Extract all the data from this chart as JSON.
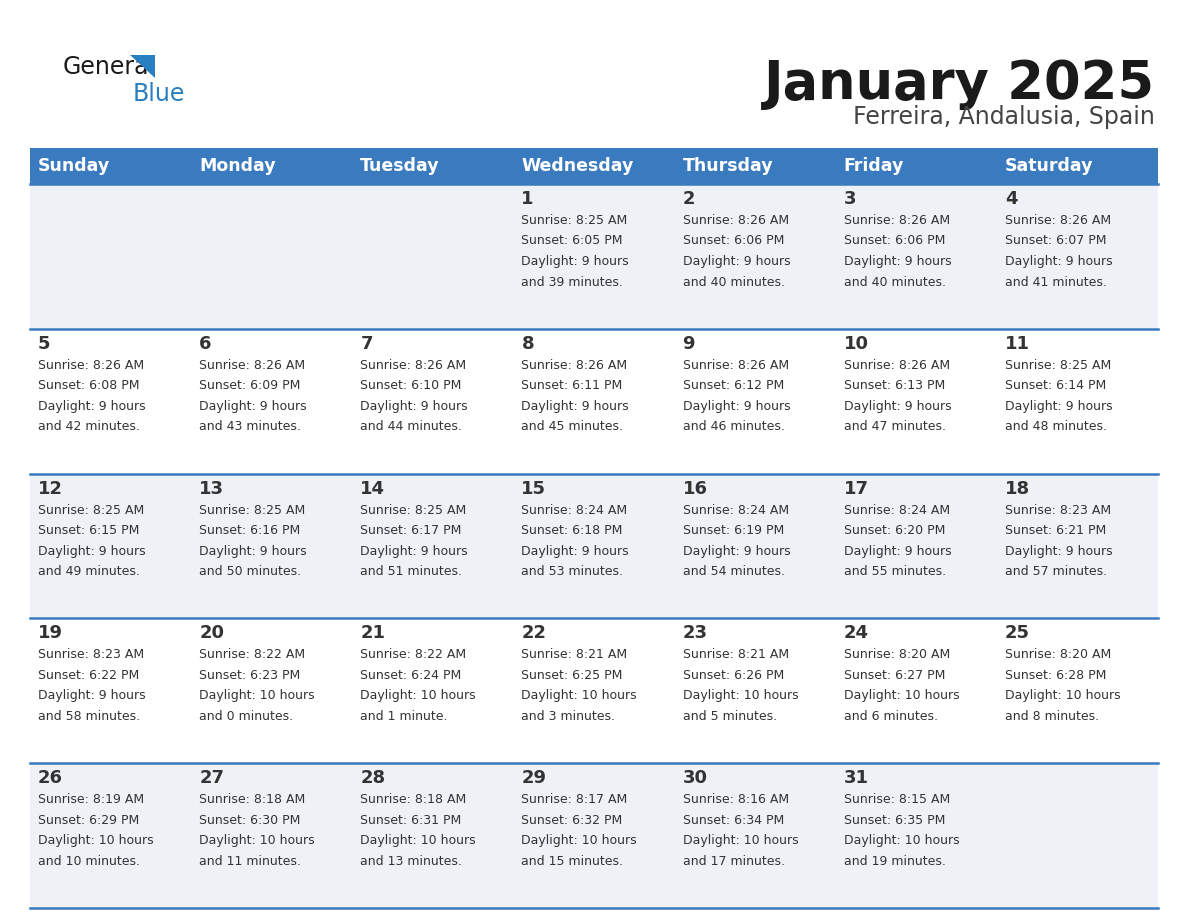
{
  "title": "January 2025",
  "subtitle": "Ferreira, Andalusia, Spain",
  "days_of_week": [
    "Sunday",
    "Monday",
    "Tuesday",
    "Wednesday",
    "Thursday",
    "Friday",
    "Saturday"
  ],
  "header_bg": "#3a7abf",
  "header_text": "#ffffff",
  "cell_bg_odd": "#eef2f7",
  "cell_bg_even": "#ffffff",
  "separator_color": "#3a7abf",
  "text_color": "#333333",
  "calendar": [
    [
      {
        "day": null,
        "sunrise": null,
        "sunset": null,
        "daylight": null
      },
      {
        "day": null,
        "sunrise": null,
        "sunset": null,
        "daylight": null
      },
      {
        "day": null,
        "sunrise": null,
        "sunset": null,
        "daylight": null
      },
      {
        "day": 1,
        "sunrise": "8:25 AM",
        "sunset": "6:05 PM",
        "daylight": "9 hours\nand 39 minutes."
      },
      {
        "day": 2,
        "sunrise": "8:26 AM",
        "sunset": "6:06 PM",
        "daylight": "9 hours\nand 40 minutes."
      },
      {
        "day": 3,
        "sunrise": "8:26 AM",
        "sunset": "6:06 PM",
        "daylight": "9 hours\nand 40 minutes."
      },
      {
        "day": 4,
        "sunrise": "8:26 AM",
        "sunset": "6:07 PM",
        "daylight": "9 hours\nand 41 minutes."
      }
    ],
    [
      {
        "day": 5,
        "sunrise": "8:26 AM",
        "sunset": "6:08 PM",
        "daylight": "9 hours\nand 42 minutes."
      },
      {
        "day": 6,
        "sunrise": "8:26 AM",
        "sunset": "6:09 PM",
        "daylight": "9 hours\nand 43 minutes."
      },
      {
        "day": 7,
        "sunrise": "8:26 AM",
        "sunset": "6:10 PM",
        "daylight": "9 hours\nand 44 minutes."
      },
      {
        "day": 8,
        "sunrise": "8:26 AM",
        "sunset": "6:11 PM",
        "daylight": "9 hours\nand 45 minutes."
      },
      {
        "day": 9,
        "sunrise": "8:26 AM",
        "sunset": "6:12 PM",
        "daylight": "9 hours\nand 46 minutes."
      },
      {
        "day": 10,
        "sunrise": "8:26 AM",
        "sunset": "6:13 PM",
        "daylight": "9 hours\nand 47 minutes."
      },
      {
        "day": 11,
        "sunrise": "8:25 AM",
        "sunset": "6:14 PM",
        "daylight": "9 hours\nand 48 minutes."
      }
    ],
    [
      {
        "day": 12,
        "sunrise": "8:25 AM",
        "sunset": "6:15 PM",
        "daylight": "9 hours\nand 49 minutes."
      },
      {
        "day": 13,
        "sunrise": "8:25 AM",
        "sunset": "6:16 PM",
        "daylight": "9 hours\nand 50 minutes."
      },
      {
        "day": 14,
        "sunrise": "8:25 AM",
        "sunset": "6:17 PM",
        "daylight": "9 hours\nand 51 minutes."
      },
      {
        "day": 15,
        "sunrise": "8:24 AM",
        "sunset": "6:18 PM",
        "daylight": "9 hours\nand 53 minutes."
      },
      {
        "day": 16,
        "sunrise": "8:24 AM",
        "sunset": "6:19 PM",
        "daylight": "9 hours\nand 54 minutes."
      },
      {
        "day": 17,
        "sunrise": "8:24 AM",
        "sunset": "6:20 PM",
        "daylight": "9 hours\nand 55 minutes."
      },
      {
        "day": 18,
        "sunrise": "8:23 AM",
        "sunset": "6:21 PM",
        "daylight": "9 hours\nand 57 minutes."
      }
    ],
    [
      {
        "day": 19,
        "sunrise": "8:23 AM",
        "sunset": "6:22 PM",
        "daylight": "9 hours\nand 58 minutes."
      },
      {
        "day": 20,
        "sunrise": "8:22 AM",
        "sunset": "6:23 PM",
        "daylight": "10 hours\nand 0 minutes."
      },
      {
        "day": 21,
        "sunrise": "8:22 AM",
        "sunset": "6:24 PM",
        "daylight": "10 hours\nand 1 minute."
      },
      {
        "day": 22,
        "sunrise": "8:21 AM",
        "sunset": "6:25 PM",
        "daylight": "10 hours\nand 3 minutes."
      },
      {
        "day": 23,
        "sunrise": "8:21 AM",
        "sunset": "6:26 PM",
        "daylight": "10 hours\nand 5 minutes."
      },
      {
        "day": 24,
        "sunrise": "8:20 AM",
        "sunset": "6:27 PM",
        "daylight": "10 hours\nand 6 minutes."
      },
      {
        "day": 25,
        "sunrise": "8:20 AM",
        "sunset": "6:28 PM",
        "daylight": "10 hours\nand 8 minutes."
      }
    ],
    [
      {
        "day": 26,
        "sunrise": "8:19 AM",
        "sunset": "6:29 PM",
        "daylight": "10 hours\nand 10 minutes."
      },
      {
        "day": 27,
        "sunrise": "8:18 AM",
        "sunset": "6:30 PM",
        "daylight": "10 hours\nand 11 minutes."
      },
      {
        "day": 28,
        "sunrise": "8:18 AM",
        "sunset": "6:31 PM",
        "daylight": "10 hours\nand 13 minutes."
      },
      {
        "day": 29,
        "sunrise": "8:17 AM",
        "sunset": "6:32 PM",
        "daylight": "10 hours\nand 15 minutes."
      },
      {
        "day": 30,
        "sunrise": "8:16 AM",
        "sunset": "6:34 PM",
        "daylight": "10 hours\nand 17 minutes."
      },
      {
        "day": 31,
        "sunrise": "8:15 AM",
        "sunset": "6:35 PM",
        "daylight": "10 hours\nand 19 minutes."
      },
      {
        "day": null,
        "sunrise": null,
        "sunset": null,
        "daylight": null
      }
    ]
  ],
  "figsize": [
    11.88,
    9.18
  ],
  "dpi": 100
}
